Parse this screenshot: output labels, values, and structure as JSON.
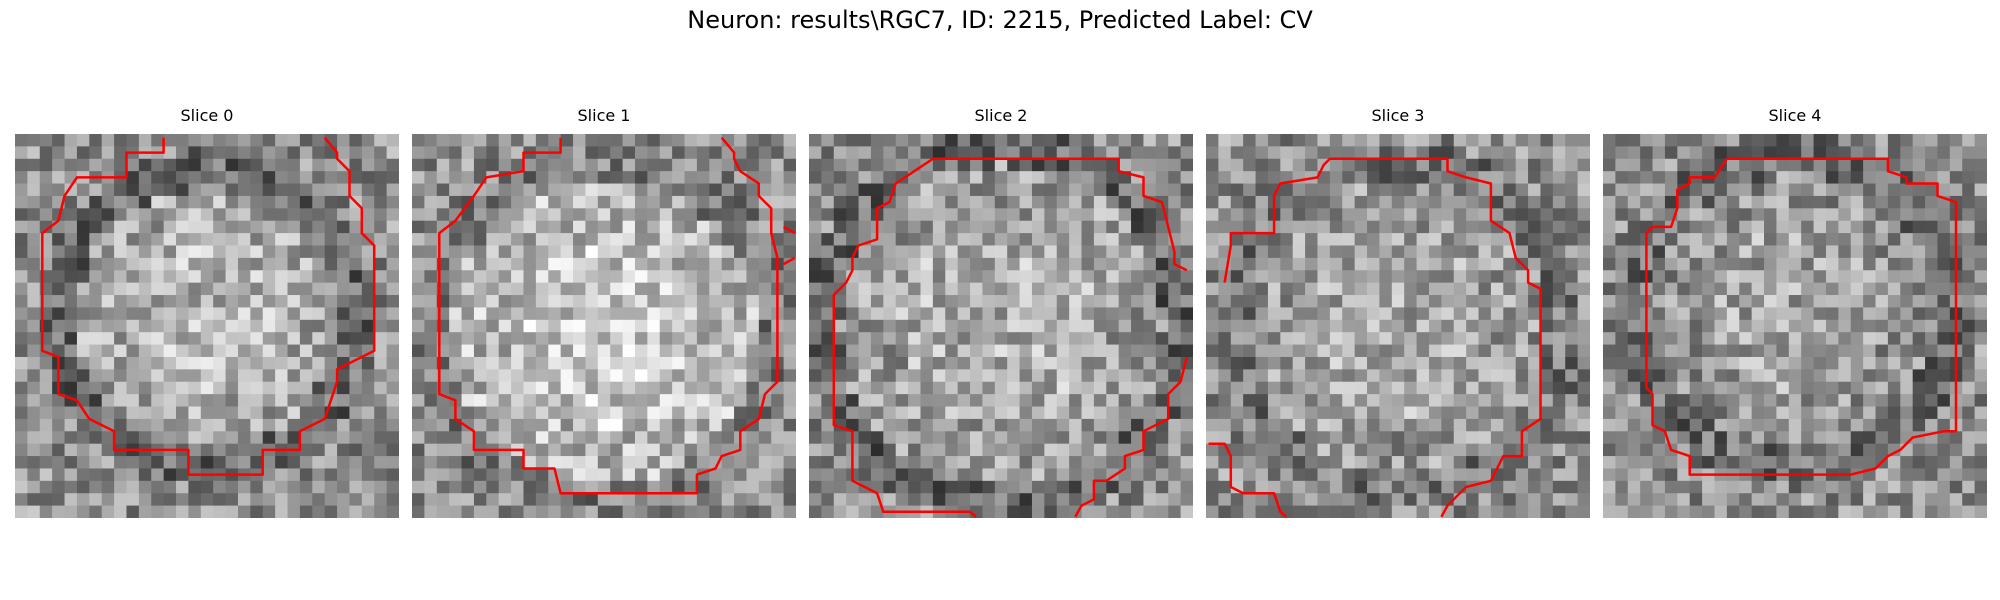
{
  "figure": {
    "title": "Neuron: results\\RGC7, ID: 2215, Predicted Label: CV"
  },
  "slices": [
    {
      "label": "Slice 0"
    },
    {
      "label": "Slice 1"
    },
    {
      "label": "Slice 2"
    },
    {
      "label": "Slice 3"
    },
    {
      "label": "Slice 4"
    }
  ],
  "colors": {
    "contour": "#ff0000",
    "background": "#ffffff",
    "colormap": "grayscale"
  }
}
